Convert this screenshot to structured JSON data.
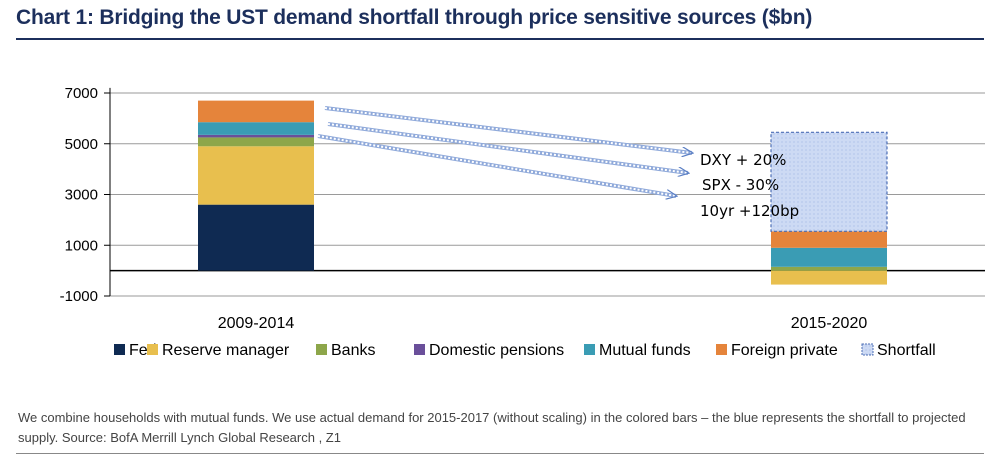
{
  "title": "Chart 1: Bridging the UST demand shortfall through price sensitive sources ($bn)",
  "note": "We combine households with mutual funds. We use actual demand for 2015-2017 (without scaling) in the colored bars – the blue represents the shortfall to projected supply. Source: BofA Merrill Lynch Global Research , Z1",
  "chart_data": {
    "type": "bar",
    "stacked": true,
    "categories": [
      "2009-2014",
      "2015-2020"
    ],
    "y_ticks": [
      7000,
      5000,
      3000,
      1000,
      -1000
    ],
    "y_tick_labels": [
      "7000",
      "5000",
      "3000",
      "1000",
      "-1000"
    ],
    "ylim": [
      -1000,
      7200
    ],
    "grid": true,
    "legend_position": "bottom",
    "series": [
      {
        "name": "Fed",
        "color": "#0f2a52",
        "values": [
          2600,
          0
        ]
      },
      {
        "name": "Reserve manager",
        "color": "#e8bf4e",
        "values": [
          2300,
          -550
        ]
      },
      {
        "name": "Banks",
        "color": "#8da64a",
        "values": [
          350,
          150
        ]
      },
      {
        "name": "Domestic pensions",
        "color": "#6a4f9a",
        "values": [
          100,
          0
        ]
      },
      {
        "name": "Mutual funds",
        "color": "#3a9cb4",
        "values": [
          500,
          750
        ]
      },
      {
        "name": "Foreign private",
        "color": "#e5843b",
        "values": [
          850,
          650
        ]
      },
      {
        "name": "Shortfall",
        "color": "#cddaf4",
        "values": [
          0,
          3900
        ]
      }
    ],
    "annotations": [
      "DXY + 20%",
      "SPX - 30%",
      "10yr  +120bp"
    ]
  }
}
